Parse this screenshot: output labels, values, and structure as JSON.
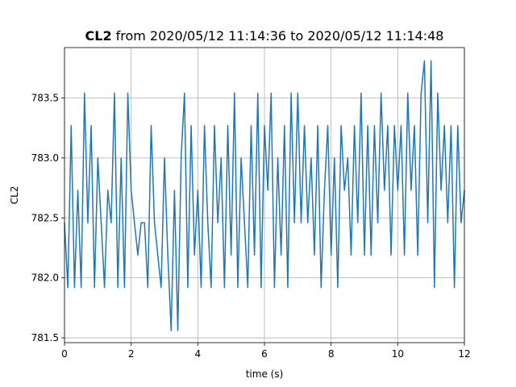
{
  "chart_data": {
    "type": "line",
    "title_parts": [
      "CL2",
      "from 2020/05/12 11:14:36 to 2020/05/12 11:14:48"
    ],
    "xlabel": "time (s)",
    "ylabel": "CL2",
    "xlim": [
      0,
      12
    ],
    "ylim": [
      781.46,
      783.92
    ],
    "xticks": [
      0,
      2,
      4,
      6,
      8,
      10,
      12
    ],
    "yticks": [
      781.5,
      {
        "value": 782,
        "label": "782.0"
      },
      782.5,
      {
        "value": 783,
        "label": "783.0"
      },
      783.5
    ],
    "grid": true,
    "x": [
      0,
      0.1,
      0.2,
      0.3,
      0.4,
      0.5,
      0.6,
      0.7,
      0.8,
      0.9,
      1,
      1.1,
      1.2,
      1.3,
      1.4,
      1.5,
      1.6,
      1.7,
      1.8,
      1.9,
      2,
      2.1,
      2.2,
      2.3,
      2.4,
      2.5,
      2.6,
      2.7,
      2.8,
      2.9,
      3,
      3.1,
      3.2,
      3.3,
      3.4,
      3.5,
      3.6,
      3.7,
      3.8,
      3.9,
      4,
      4.1,
      4.2,
      4.3,
      4.4,
      4.5,
      4.6,
      4.7,
      4.8,
      4.9,
      5,
      5.1,
      5.2,
      5.3,
      5.4,
      5.5,
      5.6,
      5.7,
      5.8,
      5.9,
      6,
      6.1,
      6.2,
      6.3,
      6.4,
      6.5,
      6.6,
      6.7,
      6.8,
      6.9,
      7,
      7.1,
      7.2,
      7.3,
      7.4,
      7.5,
      7.6,
      7.7,
      7.8,
      7.9,
      8,
      8.1,
      8.2,
      8.3,
      8.4,
      8.5,
      8.6,
      8.7,
      8.8,
      8.9,
      9,
      9.1,
      9.2,
      9.3,
      9.4,
      9.5,
      9.6,
      9.7,
      9.8,
      9.9,
      10,
      10.1,
      10.2,
      10.3,
      10.4,
      10.5,
      10.6,
      10.7,
      10.8,
      10.9,
      11,
      11.1,
      11.2,
      11.3,
      11.4,
      11.5,
      11.6,
      11.7,
      11.8,
      11.9,
      12
    ],
    "series": [
      {
        "name": "CL2",
        "color": "#1f77b4",
        "values": [
          782.46,
          781.92,
          783.27,
          781.92,
          782.73,
          781.92,
          783.54,
          782.46,
          783.27,
          781.92,
          783.0,
          782.46,
          781.92,
          782.73,
          782.46,
          783.54,
          781.92,
          783.0,
          781.92,
          783.54,
          782.73,
          782.46,
          782.19,
          782.46,
          782.46,
          781.92,
          783.27,
          782.46,
          782.19,
          781.92,
          783.0,
          782.19,
          781.56,
          782.73,
          781.56,
          783.0,
          783.54,
          781.92,
          783.27,
          782.19,
          782.73,
          781.92,
          783.27,
          782.46,
          781.92,
          783.27,
          782.46,
          783.0,
          781.92,
          783.27,
          782.19,
          783.54,
          781.92,
          783.0,
          782.46,
          781.92,
          783.27,
          782.19,
          783.54,
          781.92,
          783.27,
          782.73,
          783.54,
          781.92,
          783.0,
          782.19,
          783.27,
          781.92,
          783.54,
          782.46,
          783.54,
          782.46,
          783.27,
          782.46,
          783.0,
          782.19,
          783.27,
          781.92,
          782.73,
          783.27,
          782.19,
          783.0,
          781.92,
          783.27,
          782.73,
          783.0,
          782.19,
          783.27,
          782.46,
          783.54,
          782.19,
          783.27,
          782.19,
          783.27,
          782.46,
          783.54,
          782.73,
          783.27,
          782.19,
          783.27,
          782.73,
          783.27,
          782.19,
          783.54,
          782.73,
          783.27,
          782.19,
          783.54,
          783.81,
          782.46,
          783.81,
          781.92,
          783.54,
          782.73,
          783.27,
          782.46,
          783.27,
          781.92,
          783.27,
          782.46,
          782.73
        ]
      }
    ]
  }
}
